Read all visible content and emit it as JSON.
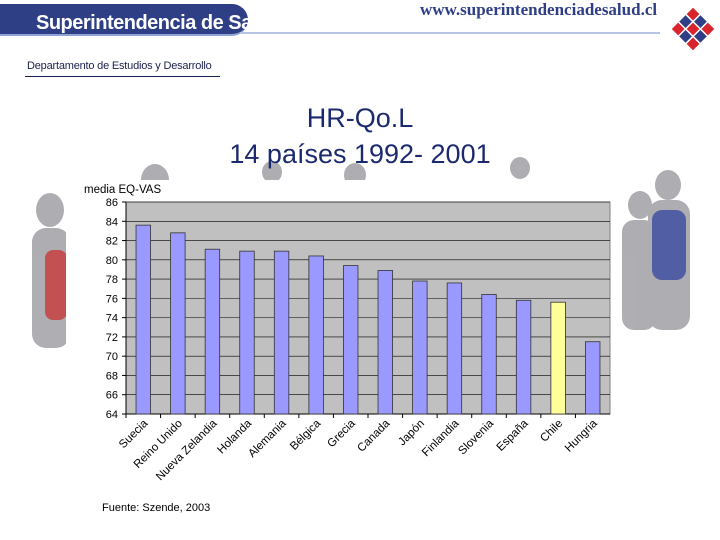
{
  "header": {
    "brand": "Superintendencia de Salud",
    "url": "www.superintendenciadesalud.cl",
    "department": "Departamento de Estudios y Desarrollo"
  },
  "slide": {
    "title_line1": "HR-Qo.L",
    "title_line2": "14 países 1992- 2001"
  },
  "colors": {
    "brand": "#2f3f86",
    "bar": "#9999ff",
    "highlight_bar": "#ffff99",
    "plot_bg": "#c0c0c0"
  },
  "chart_data": {
    "type": "bar",
    "ylabel": "media EQ-VAS",
    "xlabel": "",
    "ylim": [
      64,
      86
    ],
    "yticks": [
      64,
      66,
      68,
      70,
      72,
      74,
      76,
      78,
      80,
      82,
      84,
      86
    ],
    "grid": true,
    "categories": [
      "Suecia",
      "Reino Unido",
      "Nueva Zelandia",
      "Holanda",
      "Alemania",
      "Bélgica",
      "Grecia",
      "Canada",
      "Japón",
      "Finlandia",
      "Slovenia",
      "España",
      "Chile",
      "Hungria"
    ],
    "values": [
      83.6,
      82.8,
      81.1,
      80.9,
      80.9,
      80.4,
      79.4,
      78.9,
      77.8,
      77.6,
      76.4,
      75.8,
      75.6,
      71.5
    ],
    "highlight": "Chile",
    "source": "Fuente: Szende, 2003"
  }
}
